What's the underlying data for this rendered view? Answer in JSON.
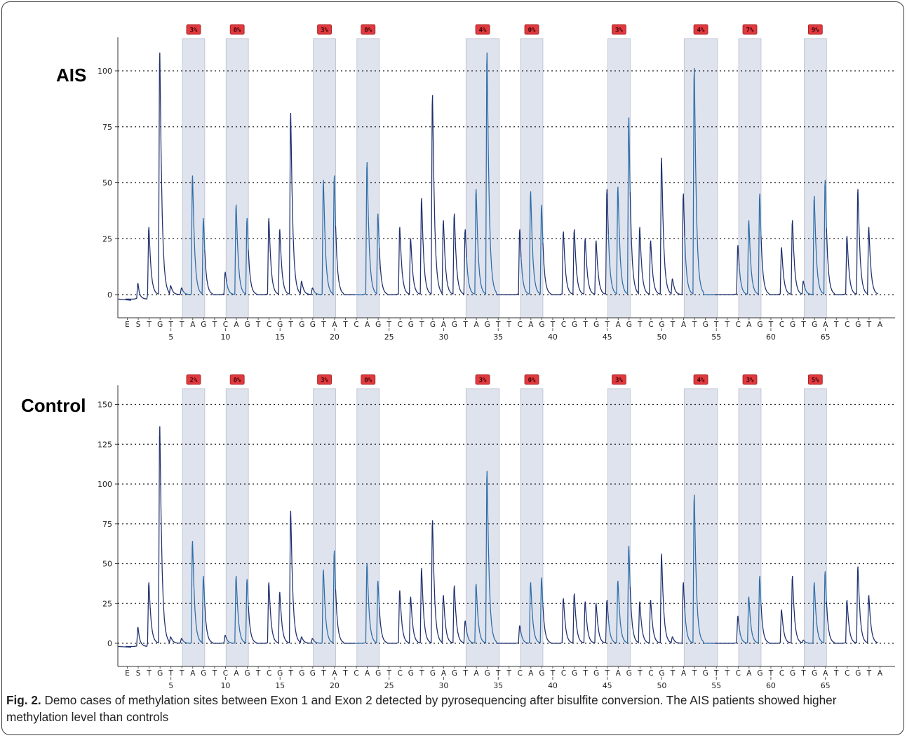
{
  "caption": {
    "label": "Fig. 2.",
    "text": " Demo cases of methylation sites between Exon 1 and Exon 2 detected by pyrosequencing after bisulfite conversion. The AIS patients showed higher methylation level than controls"
  },
  "colors": {
    "trace": "#1e2f6e",
    "trace_shaded": "#2f6ea8",
    "band": "#dfe3ee",
    "badge": "#e0393e",
    "grid": "#222222"
  },
  "chart_data": [
    {
      "type": "line",
      "title": "AIS",
      "xlabel": "",
      "ylabel": "",
      "ylim": [
        0,
        115
      ],
      "yticks": [
        0,
        25,
        50,
        75,
        100
      ],
      "grid": true,
      "x_dispensation": [
        "E",
        "S",
        "T",
        "G",
        "T",
        "T",
        "A",
        "G",
        "T",
        "C",
        "A",
        "G",
        "T",
        "C",
        "G",
        "T",
        "G",
        "G",
        "T",
        "A",
        "T",
        "C",
        "A",
        "G",
        "T",
        "C",
        "G",
        "T",
        "G",
        "A",
        "G",
        "T",
        "A",
        "G",
        "T",
        "T",
        "C",
        "A",
        "G",
        "T",
        "C",
        "G",
        "T",
        "G",
        "T",
        "A",
        "G",
        "T",
        "C",
        "G",
        "T",
        "A",
        "T",
        "G",
        "T",
        "T",
        "C",
        "A",
        "G",
        "T",
        "C",
        "G",
        "T",
        "G",
        "A",
        "T",
        "C",
        "G",
        "T",
        "A"
      ],
      "x_number_ticks": [
        5,
        10,
        15,
        20,
        25,
        30,
        35,
        40,
        45,
        50,
        55,
        60,
        65
      ],
      "cpg_sites": [
        {
          "start": 7,
          "end": 8,
          "label": "3%"
        },
        {
          "start": 11,
          "end": 12,
          "label": "0%"
        },
        {
          "start": 19,
          "end": 20,
          "label": "3%"
        },
        {
          "start": 23,
          "end": 24,
          "label": "0%"
        },
        {
          "start": 33,
          "end": 35,
          "label": "4%"
        },
        {
          "start": 38,
          "end": 39,
          "label": "0%"
        },
        {
          "start": 46,
          "end": 47,
          "label": "3%"
        },
        {
          "start": 53,
          "end": 55,
          "label": "4%"
        },
        {
          "start": 58,
          "end": 59,
          "label": "7%"
        },
        {
          "start": 64,
          "end": 65,
          "label": "9%"
        }
      ],
      "peaks": [
        {
          "x": 1,
          "y": 0
        },
        {
          "x": 2,
          "y": 5
        },
        {
          "x": 3,
          "y": 30
        },
        {
          "x": 4,
          "y": 108
        },
        {
          "x": 5,
          "y": 4
        },
        {
          "x": 6,
          "y": 3
        },
        {
          "x": 7,
          "y": 53
        },
        {
          "x": 8,
          "y": 34
        },
        {
          "x": 9,
          "y": 0
        },
        {
          "x": 10,
          "y": 10
        },
        {
          "x": 11,
          "y": 40
        },
        {
          "x": 12,
          "y": 34
        },
        {
          "x": 13,
          "y": 0
        },
        {
          "x": 14,
          "y": 34
        },
        {
          "x": 15,
          "y": 29
        },
        {
          "x": 16,
          "y": 81
        },
        {
          "x": 17,
          "y": 6
        },
        {
          "x": 18,
          "y": 3
        },
        {
          "x": 19,
          "y": 51
        },
        {
          "x": 20,
          "y": 53
        },
        {
          "x": 21,
          "y": 0
        },
        {
          "x": 22,
          "y": 0
        },
        {
          "x": 23,
          "y": 59
        },
        {
          "x": 24,
          "y": 36
        },
        {
          "x": 25,
          "y": 0
        },
        {
          "x": 26,
          "y": 30
        },
        {
          "x": 27,
          "y": 25
        },
        {
          "x": 28,
          "y": 43
        },
        {
          "x": 29,
          "y": 89
        },
        {
          "x": 30,
          "y": 33
        },
        {
          "x": 31,
          "y": 36
        },
        {
          "x": 32,
          "y": 29
        },
        {
          "x": 33,
          "y": 47
        },
        {
          "x": 34,
          "y": 108
        },
        {
          "x": 35,
          "y": 0
        },
        {
          "x": 36,
          "y": 0
        },
        {
          "x": 37,
          "y": 29
        },
        {
          "x": 38,
          "y": 46
        },
        {
          "x": 39,
          "y": 40
        },
        {
          "x": 40,
          "y": 0
        },
        {
          "x": 41,
          "y": 28
        },
        {
          "x": 42,
          "y": 29
        },
        {
          "x": 43,
          "y": 25
        },
        {
          "x": 44,
          "y": 24
        },
        {
          "x": 45,
          "y": 47
        },
        {
          "x": 46,
          "y": 48
        },
        {
          "x": 47,
          "y": 79
        },
        {
          "x": 48,
          "y": 30
        },
        {
          "x": 49,
          "y": 24
        },
        {
          "x": 50,
          "y": 61
        },
        {
          "x": 51,
          "y": 7
        },
        {
          "x": 52,
          "y": 45
        },
        {
          "x": 53,
          "y": 101
        },
        {
          "x": 54,
          "y": 0
        },
        {
          "x": 55,
          "y": 0
        },
        {
          "x": 56,
          "y": 0
        },
        {
          "x": 57,
          "y": 22
        },
        {
          "x": 58,
          "y": 33
        },
        {
          "x": 59,
          "y": 45
        },
        {
          "x": 60,
          "y": 0
        },
        {
          "x": 61,
          "y": 21
        },
        {
          "x": 62,
          "y": 33
        },
        {
          "x": 63,
          "y": 6
        },
        {
          "x": 64,
          "y": 44
        },
        {
          "x": 65,
          "y": 51
        },
        {
          "x": 66,
          "y": 0
        },
        {
          "x": 67,
          "y": 26
        },
        {
          "x": 68,
          "y": 47
        },
        {
          "x": 69,
          "y": 30
        }
      ]
    },
    {
      "type": "line",
      "title": "Control",
      "xlabel": "",
      "ylabel": "",
      "ylim": [
        -5,
        162
      ],
      "yticks": [
        0,
        25,
        50,
        75,
        100,
        125,
        150
      ],
      "grid": true,
      "x_dispensation": [
        "E",
        "S",
        "T",
        "G",
        "T",
        "T",
        "A",
        "G",
        "T",
        "C",
        "A",
        "G",
        "T",
        "C",
        "G",
        "T",
        "G",
        "G",
        "T",
        "A",
        "T",
        "C",
        "A",
        "G",
        "T",
        "C",
        "G",
        "T",
        "G",
        "A",
        "G",
        "T",
        "A",
        "G",
        "T",
        "T",
        "C",
        "A",
        "G",
        "T",
        "C",
        "G",
        "T",
        "G",
        "T",
        "A",
        "G",
        "T",
        "C",
        "G",
        "T",
        "A",
        "T",
        "G",
        "T",
        "T",
        "C",
        "A",
        "G",
        "T",
        "C",
        "G",
        "T",
        "G",
        "A",
        "T",
        "C",
        "G",
        "T",
        "A"
      ],
      "x_number_ticks": [
        5,
        10,
        15,
        20,
        25,
        30,
        35,
        40,
        45,
        50,
        55,
        60,
        65
      ],
      "cpg_sites": [
        {
          "start": 7,
          "end": 8,
          "label": "2%"
        },
        {
          "start": 11,
          "end": 12,
          "label": "0%"
        },
        {
          "start": 19,
          "end": 20,
          "label": "3%"
        },
        {
          "start": 23,
          "end": 24,
          "label": "0%"
        },
        {
          "start": 33,
          "end": 35,
          "label": "3%"
        },
        {
          "start": 38,
          "end": 39,
          "label": "0%"
        },
        {
          "start": 46,
          "end": 47,
          "label": "3%"
        },
        {
          "start": 53,
          "end": 55,
          "label": "4%"
        },
        {
          "start": 58,
          "end": 59,
          "label": "3%"
        },
        {
          "start": 64,
          "end": 65,
          "label": "5%"
        }
      ],
      "peaks": [
        {
          "x": 1,
          "y": 0
        },
        {
          "x": 2,
          "y": 10
        },
        {
          "x": 3,
          "y": 38
        },
        {
          "x": 4,
          "y": 136
        },
        {
          "x": 5,
          "y": 4
        },
        {
          "x": 6,
          "y": 3
        },
        {
          "x": 7,
          "y": 64
        },
        {
          "x": 8,
          "y": 42
        },
        {
          "x": 9,
          "y": 0
        },
        {
          "x": 10,
          "y": 5
        },
        {
          "x": 11,
          "y": 42
        },
        {
          "x": 12,
          "y": 40
        },
        {
          "x": 13,
          "y": 0
        },
        {
          "x": 14,
          "y": 38
        },
        {
          "x": 15,
          "y": 32
        },
        {
          "x": 16,
          "y": 83
        },
        {
          "x": 17,
          "y": 4
        },
        {
          "x": 18,
          "y": 3
        },
        {
          "x": 19,
          "y": 46
        },
        {
          "x": 20,
          "y": 58
        },
        {
          "x": 21,
          "y": 0
        },
        {
          "x": 22,
          "y": 0
        },
        {
          "x": 23,
          "y": 50
        },
        {
          "x": 24,
          "y": 39
        },
        {
          "x": 25,
          "y": 0
        },
        {
          "x": 26,
          "y": 33
        },
        {
          "x": 27,
          "y": 29
        },
        {
          "x": 28,
          "y": 47
        },
        {
          "x": 29,
          "y": 77
        },
        {
          "x": 30,
          "y": 30
        },
        {
          "x": 31,
          "y": 36
        },
        {
          "x": 32,
          "y": 14
        },
        {
          "x": 33,
          "y": 37
        },
        {
          "x": 34,
          "y": 108
        },
        {
          "x": 35,
          "y": 0
        },
        {
          "x": 36,
          "y": 0
        },
        {
          "x": 37,
          "y": 11
        },
        {
          "x": 38,
          "y": 38
        },
        {
          "x": 39,
          "y": 41
        },
        {
          "x": 40,
          "y": 0
        },
        {
          "x": 41,
          "y": 28
        },
        {
          "x": 42,
          "y": 31
        },
        {
          "x": 43,
          "y": 26
        },
        {
          "x": 44,
          "y": 25
        },
        {
          "x": 45,
          "y": 27
        },
        {
          "x": 46,
          "y": 39
        },
        {
          "x": 47,
          "y": 61
        },
        {
          "x": 48,
          "y": 26
        },
        {
          "x": 49,
          "y": 27
        },
        {
          "x": 50,
          "y": 56
        },
        {
          "x": 51,
          "y": 4
        },
        {
          "x": 52,
          "y": 38
        },
        {
          "x": 53,
          "y": 93
        },
        {
          "x": 54,
          "y": 0
        },
        {
          "x": 55,
          "y": 0
        },
        {
          "x": 56,
          "y": 0
        },
        {
          "x": 57,
          "y": 17
        },
        {
          "x": 58,
          "y": 29
        },
        {
          "x": 59,
          "y": 42
        },
        {
          "x": 60,
          "y": 0
        },
        {
          "x": 61,
          "y": 21
        },
        {
          "x": 62,
          "y": 42
        },
        {
          "x": 63,
          "y": 2
        },
        {
          "x": 64,
          "y": 38
        },
        {
          "x": 65,
          "y": 45
        },
        {
          "x": 66,
          "y": 0
        },
        {
          "x": 67,
          "y": 27
        },
        {
          "x": 68,
          "y": 48
        },
        {
          "x": 69,
          "y": 30
        }
      ]
    }
  ]
}
